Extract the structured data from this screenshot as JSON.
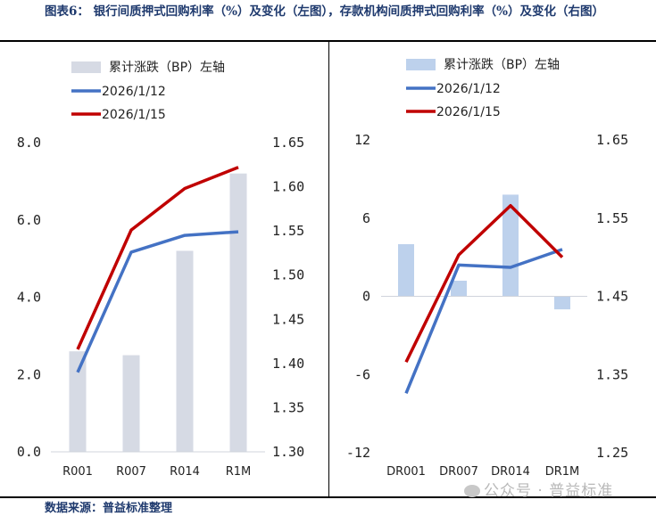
{
  "title": "图表6： 银行间质押式回购利率（%）及变化（左图），存款机构间质押式回购利率（%）及变化（右图）",
  "footer": "数据来源：普益标准整理",
  "watermark": "公众号 · 普益标准",
  "colors": {
    "title": "#1f3a6e",
    "series_1": "#4472c4",
    "series_2": "#c00000",
    "bar_left": "#d6dae4",
    "bar_right": "#bdd1ec"
  },
  "chart_data": [
    {
      "type": "bar+line",
      "categories": [
        "R001",
        "R007",
        "R014",
        "R1M"
      ],
      "legend": [
        "累计涨跌（BP）左轴",
        "2026/1/12",
        "2026/1/15"
      ],
      "legend_position": "top-left",
      "y_left": {
        "range": [
          0,
          8
        ],
        "ticks": [
          "0.0",
          "2.0",
          "4.0",
          "6.0",
          "8.0"
        ]
      },
      "y_right": {
        "range": [
          1.3,
          1.65
        ],
        "ticks": [
          "1.30",
          "1.35",
          "1.40",
          "1.45",
          "1.50",
          "1.55",
          "1.60",
          "1.65"
        ]
      },
      "bars": {
        "name": "累计涨跌（BP）左轴",
        "axis": "left",
        "values": [
          2.6,
          2.5,
          5.2,
          7.2
        ]
      },
      "series": [
        {
          "name": "2026/1/12",
          "axis": "right",
          "values": [
            1.39,
            1.526,
            1.545,
            1.549
          ]
        },
        {
          "name": "2026/1/15",
          "axis": "right",
          "values": [
            1.416,
            1.551,
            1.598,
            1.622
          ]
        }
      ],
      "grid": false
    },
    {
      "type": "bar+line",
      "categories": [
        "DR001",
        "DR007",
        "DR014",
        "DR1M"
      ],
      "legend": [
        "累计涨跌（BP）左轴",
        "2026/1/12",
        "2026/1/15"
      ],
      "legend_position": "top-left",
      "y_left": {
        "range": [
          -12,
          12
        ],
        "ticks": [
          "-12",
          "-6",
          "0",
          "6",
          "12"
        ]
      },
      "y_right": {
        "range": [
          1.25,
          1.65
        ],
        "ticks": [
          "1.25",
          "1.35",
          "1.45",
          "1.55",
          "1.65"
        ]
      },
      "bars": {
        "name": "累计涨跌（BP）左轴",
        "axis": "left",
        "values": [
          4.0,
          1.2,
          7.8,
          -1.0
        ]
      },
      "series": [
        {
          "name": "2026/1/12",
          "axis": "right",
          "values": [
            1.326,
            1.49,
            1.487,
            1.51
          ]
        },
        {
          "name": "2026/1/15",
          "axis": "right",
          "values": [
            1.366,
            1.503,
            1.566,
            1.5
          ]
        }
      ],
      "grid": false
    }
  ]
}
